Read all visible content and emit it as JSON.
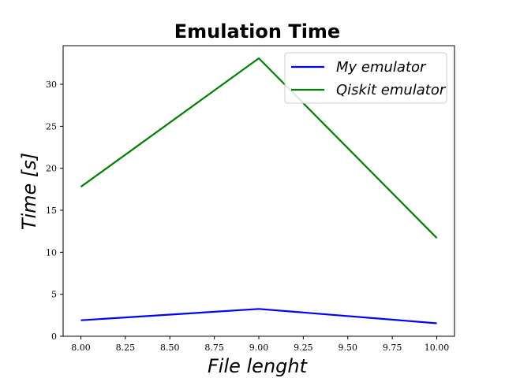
{
  "chart_data": {
    "type": "line",
    "title": "Emulation Time",
    "xlabel": "File lenght",
    "ylabel": "Time [s]",
    "xlim": [
      7.9,
      10.1
    ],
    "ylim": [
      0,
      34.6
    ],
    "xticks": [
      "8.00",
      "8.25",
      "8.50",
      "8.75",
      "9.00",
      "9.25",
      "9.50",
      "9.75",
      "10.00"
    ],
    "yticks": [
      "0",
      "5",
      "10",
      "15",
      "20",
      "25",
      "30"
    ],
    "grid": false,
    "legend_position": "top-right",
    "series": [
      {
        "name": "My emulator",
        "color": "#0000ff",
        "x": [
          8,
          9,
          10
        ],
        "y": [
          1.9,
          3.25,
          1.55
        ]
      },
      {
        "name": "Qiskit emulator",
        "color": "#008000",
        "x": [
          8,
          9,
          10
        ],
        "y": [
          17.8,
          33.1,
          11.7
        ]
      }
    ]
  }
}
